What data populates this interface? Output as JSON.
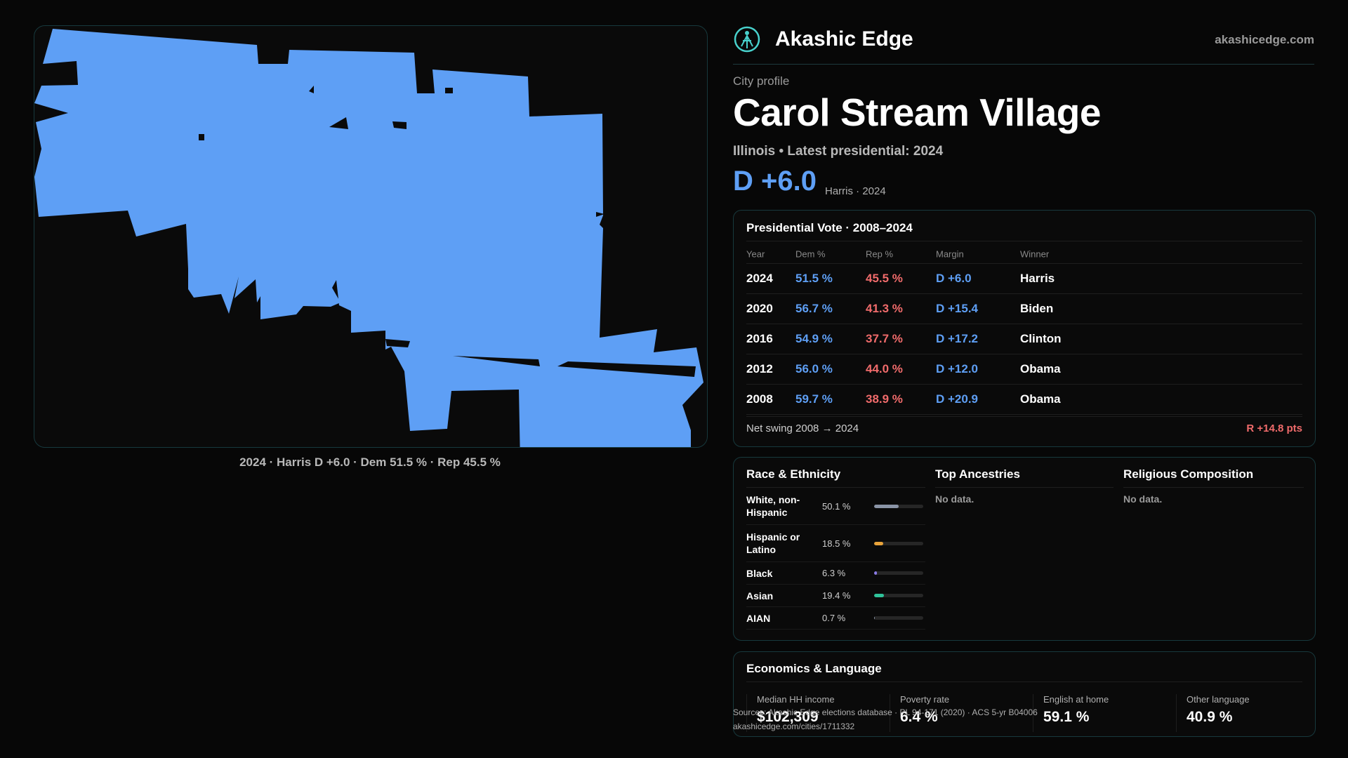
{
  "brand": {
    "name": "Akashic Edge",
    "site": "akashicedge.com",
    "logo_icon": "akashic-logo-icon",
    "accent": "#48d1cc"
  },
  "profile": {
    "eyebrow": "City profile",
    "title": "Carol Stream Village",
    "subtitle": "Illinois • Latest presidential: 2024",
    "margin": "D +6.0",
    "margin_note": "Harris · 2024"
  },
  "map": {
    "caption": "2024 · Harris D +6.0 · Dem 51.5 % · Rep 45.5 %",
    "fill_color": "#5e9ff5"
  },
  "vote": {
    "title": "Presidential Vote · 2008–2024",
    "headers": {
      "year": "Year",
      "dem": "Dem %",
      "rep": "Rep %",
      "margin": "Margin",
      "winner": "Winner"
    },
    "rows": [
      {
        "year": "2024",
        "dem": "51.5 %",
        "rep": "45.5 %",
        "margin": "D +6.0",
        "winner": "Harris"
      },
      {
        "year": "2020",
        "dem": "56.7 %",
        "rep": "41.3 %",
        "margin": "D +15.4",
        "winner": "Biden"
      },
      {
        "year": "2016",
        "dem": "54.9 %",
        "rep": "37.7 %",
        "margin": "D +17.2",
        "winner": "Clinton"
      },
      {
        "year": "2012",
        "dem": "56.0 %",
        "rep": "44.0 %",
        "margin": "D +12.0",
        "winner": "Obama"
      },
      {
        "year": "2008",
        "dem": "59.7 %",
        "rep": "38.9 %",
        "margin": "D +20.9",
        "winner": "Obama"
      }
    ],
    "swing_label": "Net swing 2008 → 2024",
    "swing_value": "R +14.8 pts",
    "colors": {
      "dem": "#5e9ff5",
      "rep": "#f06b6b"
    }
  },
  "race": {
    "title": "Race & Ethnicity",
    "rows": [
      {
        "label": "White, non-Hispanic",
        "pct": "50.1 %",
        "value": 50.1,
        "color": "#8a94a6"
      },
      {
        "label": "Hispanic or Latino",
        "pct": "18.5 %",
        "value": 18.5,
        "color": "#e8a33a"
      },
      {
        "label": "Black",
        "pct": "6.3 %",
        "value": 6.3,
        "color": "#8b7be8"
      },
      {
        "label": "Asian",
        "pct": "19.4 %",
        "value": 19.4,
        "color": "#2fc39a"
      },
      {
        "label": "AIAN",
        "pct": "0.7 %",
        "value": 0.7,
        "color": "#8a94a6"
      }
    ]
  },
  "ancestries": {
    "title": "Top Ancestries",
    "empty": "No data."
  },
  "religion": {
    "title": "Religious Composition",
    "empty": "No data."
  },
  "economics": {
    "title": "Economics & Language",
    "stats": [
      {
        "label": "Median HH income",
        "value": "$102,309"
      },
      {
        "label": "Poverty rate",
        "value": "6.4 %"
      },
      {
        "label": "English at home",
        "value": "59.1 %"
      },
      {
        "label": "Other language",
        "value": "40.9 %"
      }
    ]
  },
  "sources": {
    "line1": "Sources: Akashic Edge elections database · PL 94-171 (2020) · ACS 5-yr B04006",
    "line2": "akashicedge.com/cities/1711332"
  }
}
